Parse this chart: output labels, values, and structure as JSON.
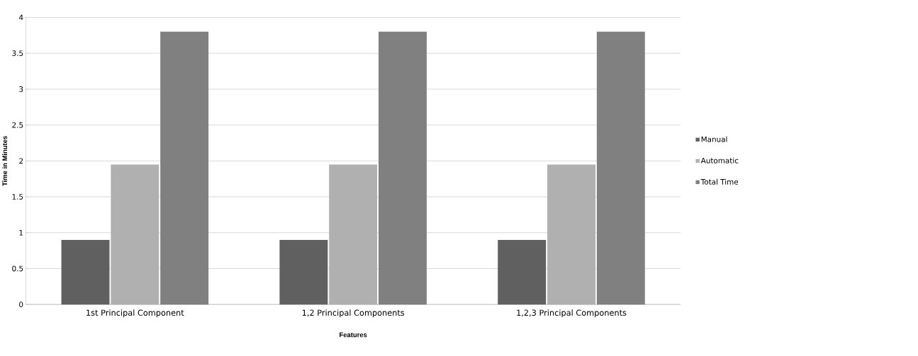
{
  "chart_data": {
    "type": "bar",
    "xlabel": "Features",
    "ylabel": "Time in Minutes",
    "categories": [
      "1st Principal Component",
      "1,2 Principal Components",
      "1,2,3 Principal Components"
    ],
    "series": [
      {
        "name": "Manual",
        "color": "#606060",
        "values": [
          0.9,
          0.9,
          0.9
        ]
      },
      {
        "name": "Automatic",
        "color": "#b0b0b0",
        "values": [
          1.95,
          1.95,
          1.95
        ]
      },
      {
        "name": "Total Time",
        "color": "#808080",
        "values": [
          3.8,
          3.8,
          3.8
        ]
      }
    ],
    "ylim": [
      0,
      4
    ],
    "yticks": [
      0,
      0.5,
      1,
      1.5,
      2,
      2.5,
      3,
      3.5,
      4
    ],
    "grid": "y",
    "legend": "right"
  }
}
